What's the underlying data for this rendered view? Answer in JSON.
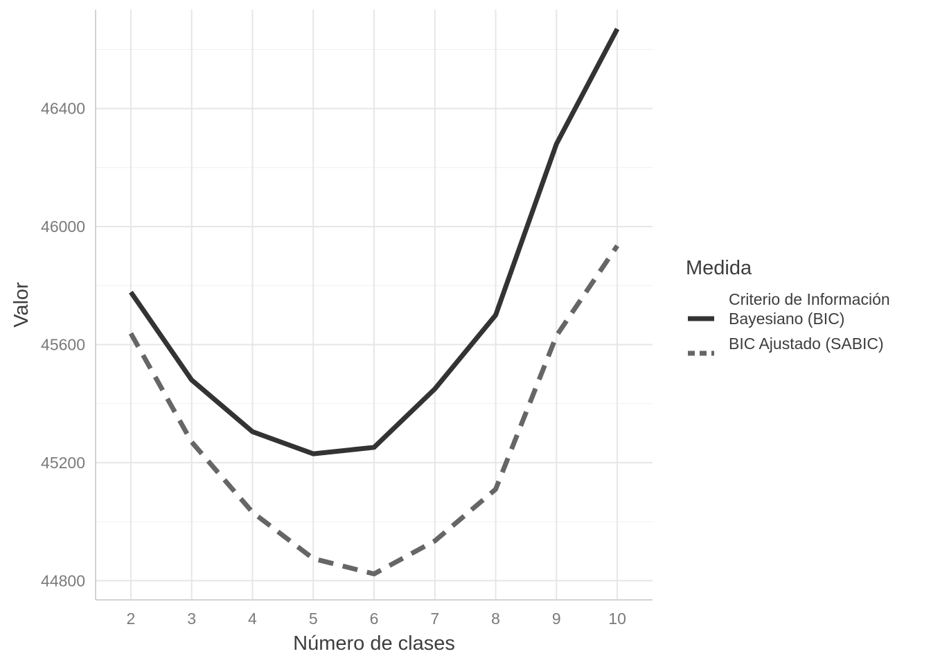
{
  "chart_data": {
    "type": "line",
    "title": "",
    "xlabel": "Número de clases",
    "ylabel": "Valor",
    "x": [
      2,
      3,
      4,
      5,
      6,
      7,
      8,
      9,
      10
    ],
    "xticks": [
      "2",
      "3",
      "4",
      "5",
      "6",
      "7",
      "8",
      "9",
      "10"
    ],
    "yticks": [
      44800,
      45200,
      45600,
      46000,
      46400
    ],
    "ytick_labels": [
      "44800",
      "45200",
      "45600",
      "46000",
      "46400"
    ],
    "xlim": [
      1.42,
      10.58
    ],
    "ylim": [
      44735,
      46735
    ],
    "grid": true,
    "legend": {
      "title": "Medida",
      "position": "right"
    },
    "series": [
      {
        "name": "Criterio de Información Bayesiano (BIC)",
        "name_lines": [
          "Criterio de Información",
          "Bayesiano (BIC)"
        ],
        "style": "solid",
        "color": "#333333",
        "values": [
          45778,
          45480,
          45305,
          45230,
          45252,
          45450,
          45700,
          46280,
          46670
        ]
      },
      {
        "name": "BIC Ajustado (SABIC)",
        "name_lines": [
          "BIC Ajustado (SABIC)"
        ],
        "style": "dashed",
        "color": "#666666",
        "values": [
          45638,
          45270,
          45032,
          44875,
          44823,
          44935,
          45110,
          45630,
          45935
        ]
      }
    ]
  }
}
